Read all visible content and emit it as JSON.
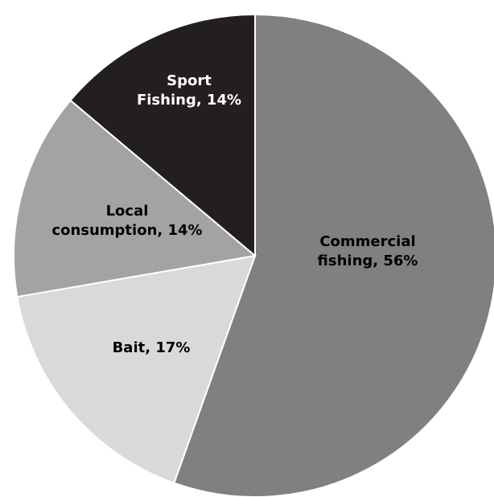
{
  "chart_data": {
    "type": "pie",
    "title": "",
    "start_angle_deg": 0,
    "direction": "clockwise",
    "slices": [
      {
        "label_lines": [
          "Commercial",
          "fishing, 56%"
        ],
        "value": 56,
        "color": "#808083",
        "label_color": "#000000"
      },
      {
        "label_lines": [
          "Bait, 17%"
        ],
        "value": 17,
        "color": "#d9d9d9",
        "label_color": "#000000"
      },
      {
        "label_lines": [
          "Local",
          "consumption, 14%"
        ],
        "value": 14,
        "color": "#a3a3a3",
        "label_color": "#000000"
      },
      {
        "label_lines": [
          "Sport",
          "Fishing, 14%"
        ],
        "value": 14,
        "color": "#231f20",
        "label_color": "#ffffff"
      }
    ]
  }
}
